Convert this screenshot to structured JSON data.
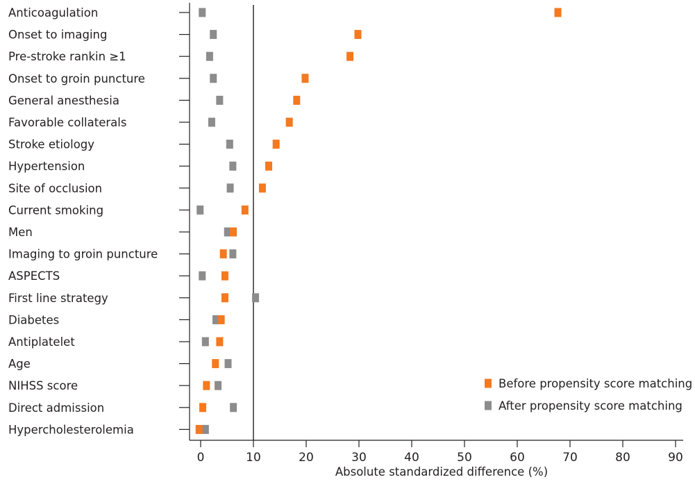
{
  "chart_data": {
    "type": "scatter",
    "title": "",
    "xlabel": "Absolute standardized difference (%)",
    "ylabel": "",
    "xlim": [
      -2,
      92
    ],
    "xticks": [
      0,
      10,
      20,
      30,
      40,
      50,
      60,
      70,
      80,
      90
    ],
    "reference_line": 10,
    "legend_position": "bottom-right",
    "categories": [
      "Anticoagulation",
      "Onset to imaging",
      "Pre-stroke rankin ≥1",
      "Onset to groin puncture",
      "General anesthesia",
      "Favorable collaterals",
      "Stroke etiology",
      "Hypertension",
      "Site of occlusion",
      "Current smoking",
      "Men",
      "Imaging to groin puncture",
      "ASPECTS",
      "First line strategy",
      "Diabetes",
      "Antiplatelet",
      "Age",
      "NIHSS score",
      "Direct admission",
      "Hypercholesterolemia"
    ],
    "series": [
      {
        "name": "Before propensity score matching",
        "color": "#f47920",
        "values": [
          67.7,
          29.8,
          28.3,
          19.8,
          18.2,
          16.8,
          14.3,
          12.9,
          11.7,
          8.4,
          6.2,
          4.3,
          4.6,
          4.6,
          3.9,
          3.6,
          2.8,
          1.1,
          0.4,
          -0.3
        ]
      },
      {
        "name": "After propensity score matching",
        "color": "#8c8c8c",
        "values": [
          0.3,
          2.4,
          1.7,
          2.4,
          3.6,
          2.1,
          5.5,
          6.1,
          5.6,
          -0.1,
          5.1,
          6.1,
          0.3,
          10.4,
          2.9,
          0.9,
          5.2,
          3.3,
          6.2,
          0.9
        ]
      }
    ]
  }
}
